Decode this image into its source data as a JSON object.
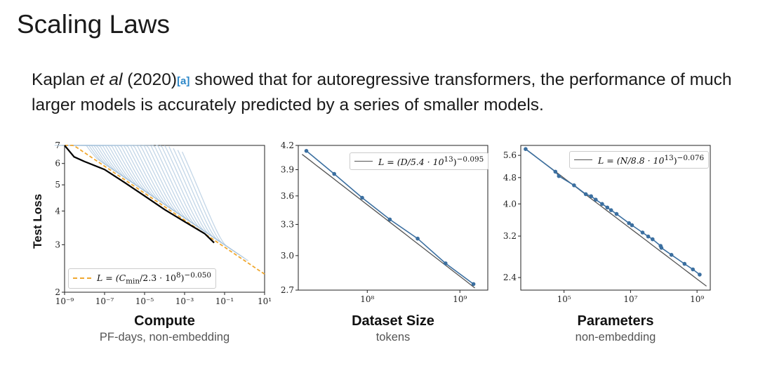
{
  "slide": {
    "title": "Scaling Laws",
    "text_author": "Kaplan",
    "text_etal": "et al",
    "text_year": " (2020)",
    "citation": "[a]",
    "text_rest": " showed that for autoregressive transformers, the performance of much larger models is accurately predicted by a series of smaller models."
  },
  "y_axis_label": "Test Loss",
  "colors": {
    "data": "#3b6fa0",
    "fit": "#555555",
    "compute_fit": "#f0a830",
    "envelope": "#000000",
    "curves": "#aac4dd"
  },
  "chart_data": [
    {
      "type": "line",
      "title": "Compute",
      "subtitle": "PF-days, non-embedding",
      "ylabel": "Test Loss",
      "xscale": "log",
      "yscale": "log",
      "xlim": [
        1e-09,
        10
      ],
      "ylim": [
        2,
        7
      ],
      "x_ticks": [
        {
          "label": "10⁻⁹",
          "value": 1e-09
        },
        {
          "label": "10⁻⁷",
          "value": 1e-07
        },
        {
          "label": "10⁻⁵",
          "value": 1e-05
        },
        {
          "label": "10⁻³",
          "value": 0.001
        },
        {
          "label": "10⁻¹",
          "value": 0.1
        },
        {
          "label": "10¹",
          "value": 10
        }
      ],
      "y_ticks": [
        {
          "label": "2",
          "value": 2
        },
        {
          "label": "3",
          "value": 3
        },
        {
          "label": "4",
          "value": 4
        },
        {
          "label": "5",
          "value": 5
        },
        {
          "label": "6",
          "value": 6
        },
        {
          "label": "7",
          "value": 7
        }
      ],
      "legend": "L = (C_min/2.3 · 10⁸)^−0.050",
      "legend_parts": {
        "pre": "L = (C",
        "sub": "min",
        "mid": "/2.3 · 10",
        "sup1": "8",
        "post": ")",
        "sup2": "−0.050"
      },
      "legend_position": "bottom-left",
      "fit": {
        "scale": 230000000.0,
        "exponent": -0.05
      },
      "frontier": [
        {
          "x": 1e-09,
          "y": 7.0
        },
        {
          "x": 3e-09,
          "y": 6.35
        },
        {
          "x": 1e-08,
          "y": 6.1
        },
        {
          "x": 1e-07,
          "y": 5.7
        },
        {
          "x": 1e-06,
          "y": 5.1
        },
        {
          "x": 1e-05,
          "y": 4.55
        },
        {
          "x": 0.0001,
          "y": 4.05
        },
        {
          "x": 0.001,
          "y": 3.65
        },
        {
          "x": 0.01,
          "y": 3.3
        },
        {
          "x": 0.03,
          "y": 3.05
        }
      ]
    },
    {
      "type": "line",
      "title": "Dataset Size",
      "subtitle": "tokens",
      "xscale": "log",
      "yscale": "log",
      "xlim": [
        18000000.0,
        2000000000.0
      ],
      "ylim": [
        2.7,
        4.2
      ],
      "x_ticks": [
        {
          "label": "10⁸",
          "value": 100000000.0
        },
        {
          "label": "10⁹",
          "value": 1000000000.0
        }
      ],
      "y_ticks": [
        {
          "label": "2.7",
          "value": 2.7
        },
        {
          "label": "3.0",
          "value": 3.0
        },
        {
          "label": "3.3",
          "value": 3.3
        },
        {
          "label": "3.6",
          "value": 3.6
        },
        {
          "label": "3.9",
          "value": 3.9
        },
        {
          "label": "4.2",
          "value": 4.2
        }
      ],
      "legend": "L = (D/5.4 · 10¹³)^−0.095",
      "legend_parts": {
        "pre": "L = (D/5.4 · 10",
        "sup1": "13",
        "post": ")",
        "sup2": "−0.095"
      },
      "legend_position": "top-right",
      "fit": {
        "scale": 54000000000000.0,
        "exponent": -0.095
      },
      "points": [
        {
          "x": 22000000.0,
          "y": 4.13
        },
        {
          "x": 44000000.0,
          "y": 3.85
        },
        {
          "x": 88000000.0,
          "y": 3.58
        },
        {
          "x": 175000000.0,
          "y": 3.35
        },
        {
          "x": 350000000.0,
          "y": 3.16
        },
        {
          "x": 700000000.0,
          "y": 2.93
        },
        {
          "x": 1400000000.0,
          "y": 2.75
        }
      ]
    },
    {
      "type": "line",
      "title": "Parameters",
      "subtitle": "non-embedding",
      "xscale": "log",
      "yscale": "log",
      "xlim": [
        5000.0,
        2500000000.0
      ],
      "ylim": [
        2.2,
        6.0
      ],
      "x_ticks": [
        {
          "label": "10⁵",
          "value": 100000.0
        },
        {
          "label": "10⁷",
          "value": 10000000.0
        },
        {
          "label": "10⁹",
          "value": 1000000000.0
        }
      ],
      "y_ticks": [
        {
          "label": "2.4",
          "value": 2.4
        },
        {
          "label": "3.2",
          "value": 3.2
        },
        {
          "label": "4.0",
          "value": 4.0
        },
        {
          "label": "4.8",
          "value": 4.8
        },
        {
          "label": "5.6",
          "value": 5.6
        }
      ],
      "legend": "L = (N/8.8 · 10¹³)^−0.076",
      "legend_parts": {
        "pre": "L = (N/8.8 · 10",
        "sup1": "13",
        "post": ")",
        "sup2": "−0.076"
      },
      "legend_position": "top-right",
      "fit": {
        "scale": 88000000000000.0,
        "exponent": -0.076
      },
      "points": [
        {
          "x": 7000.0,
          "y": 5.85
        },
        {
          "x": 55000.0,
          "y": 5.0
        },
        {
          "x": 70000.0,
          "y": 4.85
        },
        {
          "x": 200000.0,
          "y": 4.55
        },
        {
          "x": 450000.0,
          "y": 4.28
        },
        {
          "x": 650000.0,
          "y": 4.22
        },
        {
          "x": 900000.0,
          "y": 4.12
        },
        {
          "x": 1400000.0,
          "y": 4.0
        },
        {
          "x": 2000000.0,
          "y": 3.9
        },
        {
          "x": 2600000.0,
          "y": 3.83
        },
        {
          "x": 3800000.0,
          "y": 3.73
        },
        {
          "x": 9000000.0,
          "y": 3.5
        },
        {
          "x": 11000000.0,
          "y": 3.45
        },
        {
          "x": 23000000.0,
          "y": 3.28
        },
        {
          "x": 34000000.0,
          "y": 3.19
        },
        {
          "x": 46000000.0,
          "y": 3.13
        },
        {
          "x": 80000000.0,
          "y": 2.99
        },
        {
          "x": 85000000.0,
          "y": 2.95
        },
        {
          "x": 170000000.0,
          "y": 2.81
        },
        {
          "x": 420000000.0,
          "y": 2.64
        },
        {
          "x": 750000000.0,
          "y": 2.54
        },
        {
          "x": 1200000000.0,
          "y": 2.45
        }
      ]
    }
  ]
}
